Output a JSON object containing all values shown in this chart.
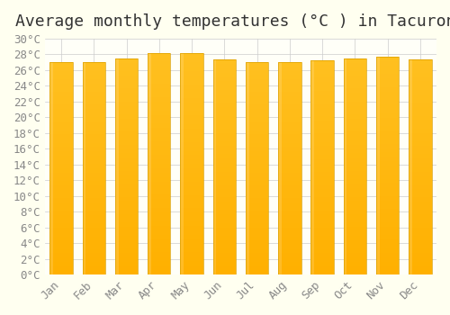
{
  "title": "Average monthly temperatures (°C ) in Tacurong",
  "months": [
    "Jan",
    "Feb",
    "Mar",
    "Apr",
    "May",
    "Jun",
    "Jul",
    "Aug",
    "Sep",
    "Oct",
    "Nov",
    "Dec"
  ],
  "temperatures": [
    27.0,
    27.0,
    27.5,
    28.2,
    28.1,
    27.3,
    27.0,
    27.0,
    27.2,
    27.5,
    27.7,
    27.3
  ],
  "bar_color_top": "#FFC020",
  "bar_color_bottom": "#FFB000",
  "ylim": [
    0,
    30
  ],
  "ytick_step": 2,
  "background_color": "#FFFFF0",
  "plot_bg_color": "#FFFFF8",
  "grid_color": "#CCCCCC",
  "title_fontsize": 13,
  "tick_fontsize": 9,
  "font_family": "monospace"
}
